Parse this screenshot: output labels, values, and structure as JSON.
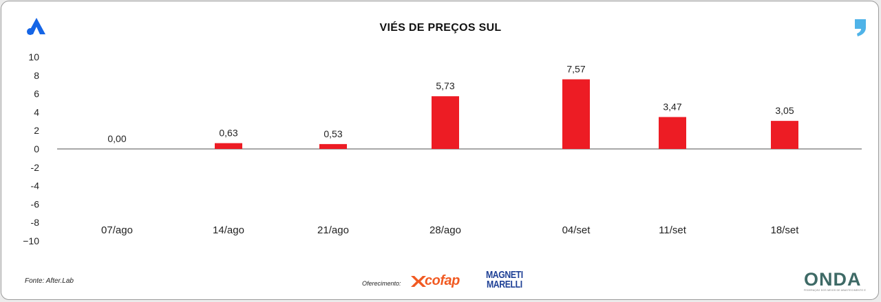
{
  "chart_data": {
    "type": "bar",
    "title": "VIÉS DE PREÇOS SUL",
    "categories": [
      "07/ago",
      "14/ago",
      "21/ago",
      "28/ago",
      "04/set",
      "11/set",
      "18/set"
    ],
    "values": [
      0.0,
      0.63,
      0.53,
      5.73,
      7.57,
      3.47,
      3.05
    ],
    "value_labels": [
      "0,00",
      "0,63",
      "0,53",
      "5,73",
      "7,57",
      "3,47",
      "3,05"
    ],
    "y_ticks": [
      10,
      8,
      6,
      4,
      2,
      0,
      -2,
      -4,
      -6,
      -8,
      -10
    ],
    "y_tick_labels": [
      "10",
      "8",
      "6",
      "4",
      "2",
      "0",
      "-2",
      "-4",
      "-6",
      "-8",
      "−10"
    ],
    "ylim": [
      -10,
      10
    ],
    "bar_color": "#ed1c24",
    "grid": false
  },
  "footer": {
    "source": "Fonte: After.Lab",
    "sponsor_label": "Oferecimento:",
    "sponsor_1": "cofap",
    "sponsor_2_line1": "MAGNETI",
    "sponsor_2_line2": "MARELLI",
    "partner": "ONDA",
    "partner_tagline": "FEDERAÇÃO DOS MEIOS DE ABASTECIMENTO E PREÇO"
  },
  "icons": {
    "top_left": "brand-a-icon",
    "top_right": "quote-mark-icon"
  }
}
